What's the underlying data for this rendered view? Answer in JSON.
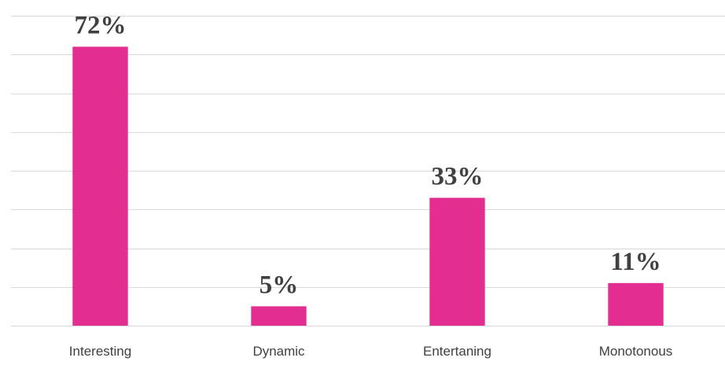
{
  "chart_data": {
    "type": "bar",
    "categories": [
      "Interesting",
      "Dynamic",
      "Entertaning",
      "Monotonous"
    ],
    "values": [
      72,
      5,
      33,
      11
    ],
    "data_labels": [
      "72%",
      "5%",
      "33%",
      "11%"
    ],
    "title": "",
    "xlabel": "",
    "ylabel": "",
    "ylim": [
      0,
      80
    ],
    "grid": true,
    "legend": "none",
    "colors": {
      "bar": "#E32D91",
      "grid": "#d9d9d9",
      "text": "#404040"
    }
  }
}
